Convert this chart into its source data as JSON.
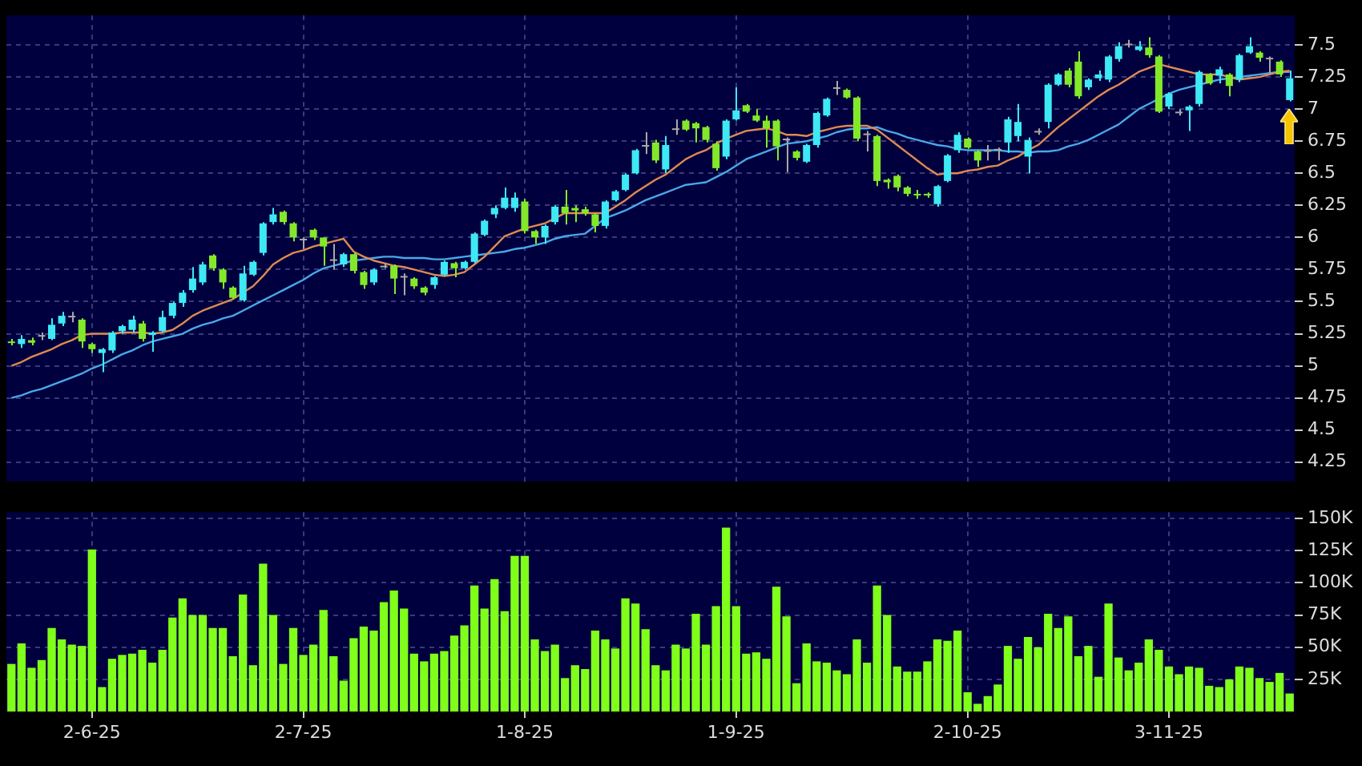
{
  "chart_data": [
    {
      "type": "candlestick",
      "categories": [
        null,
        null,
        null,
        null,
        null,
        null,
        null,
        null,
        null,
        null,
        null,
        null,
        null,
        null,
        null,
        null,
        null,
        null,
        null,
        null,
        null,
        null,
        null,
        null,
        null,
        null,
        null,
        null,
        null,
        null,
        null,
        null,
        null,
        null,
        null,
        null,
        null,
        null,
        null,
        null,
        null,
        null,
        null,
        null,
        null,
        null,
        null,
        null,
        null,
        null,
        null,
        null,
        null,
        null,
        null,
        null,
        null,
        null,
        null,
        null,
        null,
        null,
        null,
        null,
        null,
        null,
        null,
        null,
        null,
        null,
        null,
        null,
        null,
        null,
        null,
        null,
        null,
        null,
        null,
        null,
        null,
        null,
        null,
        null,
        null,
        null,
        null,
        null,
        null,
        null,
        null,
        null,
        null,
        null,
        null,
        null,
        null,
        null,
        null,
        null,
        null,
        null,
        null,
        null,
        null,
        null,
        null,
        null,
        null,
        null,
        null,
        null,
        null,
        null,
        null,
        null,
        null,
        null,
        null,
        null,
        null,
        null,
        null,
        null,
        null,
        null,
        null,
        null
      ],
      "ohlc": [
        [
          5.19,
          5.21,
          5.16,
          5.18
        ],
        [
          5.17,
          5.24,
          5.14,
          5.21
        ],
        [
          5.2,
          5.22,
          5.16,
          5.18
        ],
        [
          5.24,
          5.26,
          5.2,
          5.24
        ],
        [
          5.21,
          5.37,
          5.2,
          5.32
        ],
        [
          5.33,
          5.42,
          5.31,
          5.39
        ],
        [
          5.39,
          5.42,
          5.34,
          5.39
        ],
        [
          5.36,
          5.37,
          5.14,
          5.19
        ],
        [
          5.17,
          5.18,
          5.1,
          5.13
        ],
        [
          5.1,
          5.14,
          4.95,
          5.13
        ],
        [
          5.12,
          5.27,
          5.1,
          5.26
        ],
        [
          5.27,
          5.32,
          5.25,
          5.31
        ],
        [
          5.28,
          5.39,
          5.26,
          5.36
        ],
        [
          5.33,
          5.35,
          5.19,
          5.21
        ],
        [
          5.24,
          5.27,
          5.11,
          5.26
        ],
        [
          5.27,
          5.43,
          5.26,
          5.38
        ],
        [
          5.39,
          5.5,
          5.37,
          5.49
        ],
        [
          5.49,
          5.59,
          5.46,
          5.57
        ],
        [
          5.59,
          5.77,
          5.57,
          5.68
        ],
        [
          5.65,
          5.81,
          5.63,
          5.79
        ],
        [
          5.86,
          5.87,
          5.74,
          5.76
        ],
        [
          5.75,
          5.76,
          5.6,
          5.65
        ],
        [
          5.61,
          5.62,
          5.52,
          5.53
        ],
        [
          5.51,
          5.78,
          5.5,
          5.72
        ],
        [
          5.71,
          5.82,
          5.7,
          5.81
        ],
        [
          5.88,
          6.12,
          5.86,
          6.11
        ],
        [
          6.12,
          6.23,
          6.1,
          6.18
        ],
        [
          6.2,
          6.21,
          6.1,
          6.12
        ],
        [
          6.11,
          6.12,
          5.97,
          6.0
        ],
        [
          5.99,
          6.0,
          5.91,
          5.99
        ],
        [
          6.06,
          6.07,
          5.98,
          6.0
        ],
        [
          6.0,
          6.0,
          5.78,
          5.93
        ],
        [
          5.83,
          5.95,
          5.75,
          5.83
        ],
        [
          5.79,
          5.88,
          5.77,
          5.87
        ],
        [
          5.87,
          5.88,
          5.72,
          5.74
        ],
        [
          5.73,
          5.74,
          5.6,
          5.63
        ],
        [
          5.65,
          5.76,
          5.63,
          5.75
        ],
        [
          5.78,
          5.8,
          5.76,
          5.78
        ],
        [
          5.78,
          5.79,
          5.56,
          5.68
        ],
        [
          5.7,
          5.72,
          5.55,
          5.7
        ],
        [
          5.68,
          5.69,
          5.6,
          5.62
        ],
        [
          5.61,
          5.62,
          5.55,
          5.57
        ],
        [
          5.63,
          5.7,
          5.6,
          5.69
        ],
        [
          5.71,
          5.82,
          5.7,
          5.81
        ],
        [
          5.8,
          5.81,
          5.69,
          5.76
        ],
        [
          5.76,
          5.82,
          5.75,
          5.81
        ],
        [
          5.81,
          6.04,
          5.8,
          6.03
        ],
        [
          6.02,
          6.14,
          6.01,
          6.13
        ],
        [
          6.18,
          6.25,
          6.15,
          6.23
        ],
        [
          6.23,
          6.39,
          6.22,
          6.31
        ],
        [
          6.23,
          6.35,
          6.2,
          6.31
        ],
        [
          6.28,
          6.3,
          6.03,
          6.05
        ],
        [
          6.05,
          6.06,
          5.95,
          6.0
        ],
        [
          6.0,
          6.1,
          5.95,
          6.09
        ],
        [
          6.12,
          6.25,
          6.1,
          6.24
        ],
        [
          6.24,
          6.37,
          6.1,
          6.19
        ],
        [
          6.23,
          6.25,
          6.12,
          6.21
        ],
        [
          6.22,
          6.24,
          6.17,
          6.19
        ],
        [
          6.18,
          6.19,
          6.04,
          6.09
        ],
        [
          6.09,
          6.29,
          6.07,
          6.28
        ],
        [
          6.29,
          6.37,
          6.28,
          6.36
        ],
        [
          6.37,
          6.5,
          6.36,
          6.49
        ],
        [
          6.5,
          6.69,
          6.49,
          6.68
        ],
        [
          6.72,
          6.82,
          6.65,
          6.72
        ],
        [
          6.74,
          6.76,
          6.58,
          6.6
        ],
        [
          6.53,
          6.79,
          6.5,
          6.72
        ],
        [
          6.85,
          6.92,
          6.8,
          6.85
        ],
        [
          6.91,
          6.92,
          6.83,
          6.84
        ],
        [
          6.89,
          6.9,
          6.74,
          6.85
        ],
        [
          6.86,
          6.87,
          6.74,
          6.76
        ],
        [
          6.73,
          6.75,
          6.52,
          6.54
        ],
        [
          6.63,
          6.92,
          6.61,
          6.91
        ],
        [
          6.92,
          7.17,
          6.91,
          6.99
        ],
        [
          7.03,
          7.04,
          6.97,
          6.98
        ],
        [
          6.95,
          7.0,
          6.9,
          6.91
        ],
        [
          6.91,
          6.95,
          6.7,
          6.85
        ],
        [
          6.91,
          6.92,
          6.6,
          6.71
        ],
        [
          6.77,
          6.78,
          6.51,
          6.77
        ],
        [
          6.67,
          6.68,
          6.6,
          6.62
        ],
        [
          6.59,
          6.73,
          6.58,
          6.72
        ],
        [
          6.72,
          6.98,
          6.7,
          6.97
        ],
        [
          6.95,
          7.09,
          6.94,
          7.08
        ],
        [
          7.17,
          7.22,
          7.11,
          7.17
        ],
        [
          7.15,
          7.16,
          7.08,
          7.09
        ],
        [
          7.09,
          7.1,
          6.75,
          6.77
        ],
        [
          6.81,
          6.83,
          6.67,
          6.81
        ],
        [
          6.79,
          6.8,
          6.4,
          6.44
        ],
        [
          6.45,
          6.46,
          6.38,
          6.43
        ],
        [
          6.48,
          6.49,
          6.36,
          6.39
        ],
        [
          6.39,
          6.4,
          6.32,
          6.34
        ],
        [
          6.34,
          6.37,
          6.3,
          6.33
        ],
        [
          6.34,
          6.35,
          6.31,
          6.33
        ],
        [
          6.26,
          6.41,
          6.24,
          6.4
        ],
        [
          6.44,
          6.65,
          6.43,
          6.64
        ],
        [
          6.68,
          6.82,
          6.66,
          6.8
        ],
        [
          6.77,
          6.78,
          6.69,
          6.7
        ],
        [
          6.67,
          6.68,
          6.55,
          6.6
        ],
        [
          6.68,
          6.72,
          6.6,
          6.68
        ],
        [
          6.69,
          6.7,
          6.6,
          6.69
        ],
        [
          6.74,
          6.94,
          6.66,
          6.92
        ],
        [
          6.79,
          7.04,
          6.75,
          6.9
        ],
        [
          6.63,
          6.78,
          6.5,
          6.76
        ],
        [
          6.83,
          6.85,
          6.8,
          6.83
        ],
        [
          6.9,
          7.2,
          6.85,
          7.19
        ],
        [
          7.19,
          7.28,
          7.18,
          7.27
        ],
        [
          7.3,
          7.32,
          7.17,
          7.19
        ],
        [
          7.37,
          7.45,
          7.08,
          7.1
        ],
        [
          7.17,
          7.24,
          7.15,
          7.23
        ],
        [
          7.24,
          7.3,
          7.22,
          7.27
        ],
        [
          7.23,
          7.42,
          7.21,
          7.41
        ],
        [
          7.39,
          7.52,
          7.37,
          7.49
        ],
        [
          7.51,
          7.54,
          7.48,
          7.51
        ],
        [
          7.46,
          7.53,
          7.45,
          7.49
        ],
        [
          7.48,
          7.56,
          7.4,
          7.42
        ],
        [
          7.41,
          7.42,
          6.97,
          6.98
        ],
        [
          7.02,
          7.13,
          7.0,
          7.12
        ],
        [
          6.98,
          7.0,
          6.95,
          6.98
        ],
        [
          6.99,
          7.03,
          6.83,
          7.02
        ],
        [
          7.04,
          7.3,
          7.02,
          7.29
        ],
        [
          7.27,
          7.28,
          7.19,
          7.2
        ],
        [
          7.26,
          7.33,
          7.2,
          7.31
        ],
        [
          7.27,
          7.28,
          7.1,
          7.18
        ],
        [
          7.23,
          7.43,
          7.21,
          7.42
        ],
        [
          7.44,
          7.56,
          7.43,
          7.49
        ],
        [
          7.44,
          7.45,
          7.37,
          7.4
        ],
        [
          7.4,
          7.41,
          7.28,
          7.4
        ],
        [
          7.37,
          7.38,
          7.25,
          7.27
        ],
        [
          7.07,
          7.3,
          7.06,
          7.24
        ]
      ],
      "colors": [
        "#84e82a",
        "#3ee8f5",
        "#84e82a",
        "#a8a8a8",
        "#3ee8f5",
        "#3ee8f5",
        "#a8a8a8",
        "#84e82a",
        "#84e82a",
        "#3ee8f5",
        "#3ee8f5",
        "#3ee8f5",
        "#3ee8f5",
        "#84e82a",
        "#3ee8f5",
        "#3ee8f5",
        "#3ee8f5",
        "#3ee8f5",
        "#3ee8f5",
        "#3ee8f5",
        "#84e82a",
        "#84e82a",
        "#84e82a",
        "#3ee8f5",
        "#3ee8f5",
        "#3ee8f5",
        "#3ee8f5",
        "#84e82a",
        "#84e82a",
        "#a8a8a8",
        "#84e82a",
        "#84e82a",
        "#a8a8a8",
        "#3ee8f5",
        "#84e82a",
        "#84e82a",
        "#3ee8f5",
        "#a8a8a8",
        "#84e82a",
        "#a8a8a8",
        "#84e82a",
        "#84e82a",
        "#3ee8f5",
        "#3ee8f5",
        "#84e82a",
        "#3ee8f5",
        "#3ee8f5",
        "#3ee8f5",
        "#3ee8f5",
        "#3ee8f5",
        "#3ee8f5",
        "#84e82a",
        "#84e82a",
        "#3ee8f5",
        "#3ee8f5",
        "#84e82a",
        "#84e82a",
        "#84e82a",
        "#84e82a",
        "#3ee8f5",
        "#3ee8f5",
        "#3ee8f5",
        "#3ee8f5",
        "#a8a8a8",
        "#84e82a",
        "#3ee8f5",
        "#a8a8a8",
        "#84e82a",
        "#84e82a",
        "#84e82a",
        "#84e82a",
        "#3ee8f5",
        "#3ee8f5",
        "#84e82a",
        "#84e82a",
        "#84e82a",
        "#84e82a",
        "#a8a8a8",
        "#84e82a",
        "#3ee8f5",
        "#3ee8f5",
        "#3ee8f5",
        "#a8a8a8",
        "#84e82a",
        "#84e82a",
        "#a8a8a8",
        "#84e82a",
        "#84e82a",
        "#84e82a",
        "#84e82a",
        "#84e82a",
        "#84e82a",
        "#3ee8f5",
        "#3ee8f5",
        "#3ee8f5",
        "#84e82a",
        "#84e82a",
        "#a8a8a8",
        "#a8a8a8",
        "#3ee8f5",
        "#3ee8f5",
        "#3ee8f5",
        "#a8a8a8",
        "#3ee8f5",
        "#3ee8f5",
        "#84e82a",
        "#84e82a",
        "#3ee8f5",
        "#3ee8f5",
        "#3ee8f5",
        "#3ee8f5",
        "#a8a8a8",
        "#3ee8f5",
        "#84e82a",
        "#84e82a",
        "#3ee8f5",
        "#a8a8a8",
        "#3ee8f5",
        "#3ee8f5",
        "#84e82a",
        "#3ee8f5",
        "#84e82a",
        "#3ee8f5",
        "#3ee8f5",
        "#84e82a",
        "#a8a8a8",
        "#84e82a",
        "#3ee8f5"
      ],
      "series": [
        {
          "type": "line",
          "color": "#e08a50",
          "values": [
            5.0,
            5.03,
            5.07,
            5.1,
            5.13,
            5.17,
            5.2,
            5.24,
            5.25,
            5.25,
            5.25,
            5.26,
            5.26,
            5.26,
            5.25,
            5.26,
            5.28,
            5.33,
            5.39,
            5.43,
            5.46,
            5.49,
            5.52,
            5.57,
            5.62,
            5.7,
            5.79,
            5.84,
            5.88,
            5.9,
            5.93,
            5.95,
            5.97,
            5.99,
            5.89,
            5.85,
            5.82,
            5.8,
            5.78,
            5.77,
            5.75,
            5.73,
            5.71,
            5.7,
            5.71,
            5.73,
            5.79,
            5.85,
            5.93,
            6.01,
            6.04,
            6.07,
            6.09,
            6.11,
            6.15,
            6.19,
            6.19,
            6.19,
            6.19,
            6.19,
            6.24,
            6.29,
            6.35,
            6.4,
            6.45,
            6.49,
            6.55,
            6.61,
            6.65,
            6.68,
            6.73,
            6.77,
            6.8,
            6.83,
            6.84,
            6.85,
            6.83,
            6.8,
            6.8,
            6.79,
            6.82,
            6.84,
            6.86,
            6.87,
            6.87,
            6.87,
            6.84,
            6.78,
            6.72,
            6.66,
            6.6,
            6.54,
            6.49,
            6.5,
            6.5,
            6.52,
            6.53,
            6.55,
            6.56,
            6.6,
            6.63,
            6.68,
            6.72,
            6.79,
            6.86,
            6.92,
            6.98,
            7.04,
            7.1,
            7.15,
            7.19,
            7.24,
            7.29,
            7.32,
            7.35,
            7.33,
            7.31,
            7.29,
            7.27,
            7.27,
            7.27,
            7.25,
            7.23,
            7.24,
            7.25,
            7.27,
            7.29,
            7.3
          ]
        },
        {
          "type": "line",
          "color": "#4aa8e8",
          "values": [
            4.75,
            4.77,
            4.8,
            4.82,
            4.85,
            4.88,
            4.91,
            4.94,
            4.98,
            5.01,
            5.05,
            5.09,
            5.12,
            5.16,
            5.19,
            5.21,
            5.23,
            5.25,
            5.29,
            5.32,
            5.34,
            5.37,
            5.39,
            5.43,
            5.47,
            5.51,
            5.55,
            5.59,
            5.63,
            5.67,
            5.72,
            5.76,
            5.78,
            5.8,
            5.82,
            5.83,
            5.84,
            5.85,
            5.85,
            5.84,
            5.84,
            5.84,
            5.83,
            5.83,
            5.84,
            5.85,
            5.86,
            5.87,
            5.88,
            5.89,
            5.91,
            5.92,
            5.94,
            5.96,
            5.99,
            6.01,
            6.02,
            6.03,
            6.09,
            6.15,
            6.18,
            6.21,
            6.25,
            6.29,
            6.32,
            6.35,
            6.38,
            6.41,
            6.42,
            6.43,
            6.47,
            6.51,
            6.56,
            6.61,
            6.64,
            6.67,
            6.7,
            6.73,
            6.74,
            6.75,
            6.77,
            6.79,
            6.82,
            6.84,
            6.85,
            6.85,
            6.86,
            6.83,
            6.81,
            6.78,
            6.76,
            6.74,
            6.72,
            6.71,
            6.69,
            6.68,
            6.68,
            6.68,
            6.68,
            6.67,
            6.67,
            6.66,
            6.67,
            6.67,
            6.68,
            6.71,
            6.73,
            6.76,
            6.8,
            6.84,
            6.88,
            6.94,
            7.0,
            7.04,
            7.08,
            7.12,
            7.15,
            7.17,
            7.19,
            7.21,
            7.23,
            7.24,
            7.25,
            7.26,
            7.27,
            7.28,
            7.29,
            7.29
          ]
        }
      ],
      "ylim": [
        4.1,
        7.73
      ],
      "yticks": [
        4.25,
        4.5,
        4.75,
        5,
        5.25,
        5.5,
        5.75,
        6,
        6.25,
        6.5,
        6.75,
        7,
        7.25,
        7.5
      ],
      "grid": true,
      "tick_labels": "y"
    },
    {
      "type": "bar",
      "categories": [
        null,
        null,
        null,
        null,
        null,
        null,
        null,
        null,
        "2-6-25",
        null,
        null,
        null,
        null,
        null,
        null,
        null,
        null,
        null,
        null,
        null,
        null,
        null,
        null,
        null,
        null,
        null,
        null,
        null,
        null,
        "2-7-25",
        null,
        null,
        null,
        null,
        null,
        null,
        null,
        null,
        null,
        null,
        null,
        null,
        null,
        null,
        null,
        null,
        null,
        null,
        null,
        null,
        null,
        "1-8-25",
        null,
        null,
        null,
        null,
        null,
        null,
        null,
        null,
        null,
        null,
        null,
        null,
        null,
        null,
        null,
        null,
        null,
        null,
        null,
        null,
        "1-9-25",
        null,
        null,
        null,
        null,
        null,
        null,
        null,
        null,
        null,
        null,
        null,
        null,
        null,
        null,
        null,
        null,
        null,
        null,
        null,
        null,
        null,
        null,
        "2-10-25",
        null,
        null,
        null,
        null,
        null,
        null,
        null,
        null,
        null,
        null,
        null,
        null,
        null,
        null,
        null,
        null,
        null,
        null,
        null,
        "3-11-25",
        null,
        null,
        null,
        null,
        null,
        null,
        null,
        null,
        null,
        null,
        null,
        null
      ],
      "values": [
        37000,
        53000,
        34000,
        40000,
        65000,
        56000,
        52000,
        51000,
        126000,
        19000,
        41000,
        44000,
        45000,
        48000,
        38000,
        48000,
        73000,
        88000,
        75000,
        75000,
        65000,
        65000,
        43000,
        91000,
        36000,
        115000,
        75000,
        37000,
        65000,
        44000,
        52000,
        79000,
        43000,
        24000,
        57000,
        66000,
        63000,
        85000,
        94000,
        80000,
        45000,
        39000,
        45000,
        47000,
        59000,
        67000,
        98000,
        80000,
        103000,
        78000,
        121000,
        121000,
        56000,
        47000,
        52000,
        26000,
        36000,
        33000,
        63000,
        56000,
        49000,
        88000,
        84000,
        64000,
        36000,
        32000,
        52000,
        49000,
        76000,
        52000,
        82000,
        143000,
        82000,
        45000,
        46000,
        41000,
        97000,
        74000,
        22000,
        53000,
        39000,
        38000,
        32000,
        29000,
        56000,
        38000,
        98000,
        75000,
        35000,
        31000,
        31000,
        39000,
        56000,
        55000,
        63000,
        15000,
        6000,
        12000,
        21000,
        51000,
        41000,
        58000,
        50000,
        76000,
        65000,
        74000,
        43000,
        51000,
        27000,
        84000,
        42000,
        32000,
        38000,
        56000,
        48000,
        35000,
        29000,
        35000,
        34000,
        20000,
        19000,
        25000,
        35000,
        34000,
        26000,
        23000,
        30000,
        14000
      ],
      "color": "#80ff1a",
      "ylim": [
        0,
        155000
      ],
      "yticks": [
        {
          "value": 25000,
          "label": "25K"
        },
        {
          "value": 50000,
          "label": "50K"
        },
        {
          "value": 75000,
          "label": "75K"
        },
        {
          "value": 100000,
          "label": "100K"
        },
        {
          "value": 125000,
          "label": "125K"
        },
        {
          "value": 150000,
          "label": "150K"
        }
      ],
      "grid": true
    }
  ]
}
